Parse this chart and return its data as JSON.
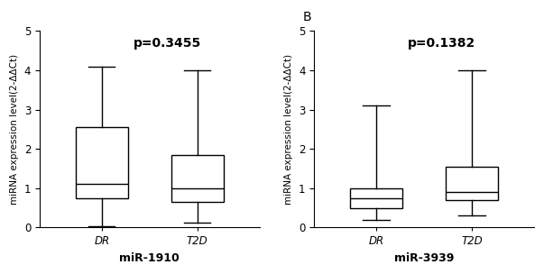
{
  "panel_A": {
    "label": "",
    "p_value": "p=0.3455",
    "xlabel": "miR-1910",
    "ylabel": "miRNA expression level(2-ΔΔCt)",
    "ylim": [
      0,
      5
    ],
    "yticks": [
      0,
      1,
      2,
      3,
      4,
      5
    ],
    "groups": [
      "DR",
      "T2D"
    ],
    "boxes": [
      {
        "whislo": 0.02,
        "q1": 0.75,
        "med": 1.1,
        "q3": 2.55,
        "whishi": 4.1
      },
      {
        "whislo": 0.12,
        "q1": 0.65,
        "med": 1.0,
        "q3": 1.85,
        "whishi": 4.0
      }
    ]
  },
  "panel_B": {
    "label": "B",
    "p_value": "p=0.1382",
    "xlabel": "miR-3939",
    "ylabel": "miRNA expression level(2-ΔΔCt)",
    "ylim": [
      0,
      5
    ],
    "yticks": [
      0,
      1,
      2,
      3,
      4,
      5
    ],
    "groups": [
      "DR",
      "T2D"
    ],
    "boxes": [
      {
        "whislo": 0.18,
        "q1": 0.5,
        "med": 0.75,
        "q3": 1.0,
        "whishi": 3.1
      },
      {
        "whislo": 0.3,
        "q1": 0.7,
        "med": 0.9,
        "q3": 1.55,
        "whishi": 4.0
      }
    ]
  },
  "box_width": 0.55,
  "box_color": "white",
  "box_edgecolor": "black",
  "median_color": "black",
  "whisker_color": "black",
  "cap_color": "black",
  "linewidth": 1.0,
  "background_color": "white",
  "p_value_fontsize": 10,
  "xlabel_fontsize": 9,
  "ylabel_fontsize": 7.5,
  "tick_fontsize": 8.5,
  "panel_label_fontsize": 10
}
